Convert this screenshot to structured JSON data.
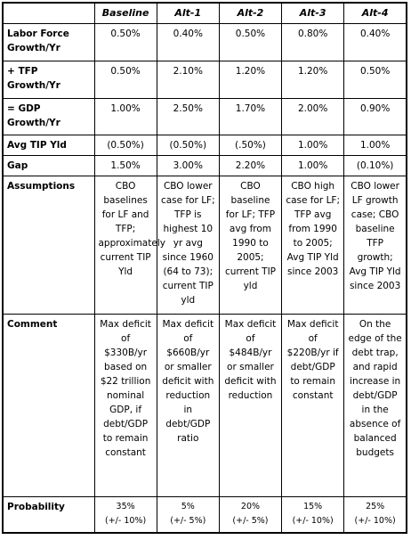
{
  "table": {
    "columns": [
      "Baseline",
      "Alt-1",
      "Alt-2",
      "Alt-3",
      "Alt-4"
    ],
    "rows": [
      {
        "label": "Labor Force Growth/Yr",
        "cells": [
          "0.50%",
          "0.40%",
          "0.50%",
          "0.80%",
          "0.40%"
        ]
      },
      {
        "label": "+ TFP Growth/Yr",
        "cells": [
          "0.50%",
          "2.10%",
          "1.20%",
          "1.20%",
          "0.50%"
        ]
      },
      {
        "label": "= GDP Growth/Yr",
        "cells": [
          "1.00%",
          "2.50%",
          "1.70%",
          "2.00%",
          "0.90%"
        ]
      },
      {
        "label": "Avg TIP Yld",
        "cells": [
          "(0.50%)",
          "(0.50%)",
          "(.50%)",
          "1.00%",
          "1.00%"
        ]
      },
      {
        "label": "Gap",
        "cells": [
          "1.50%",
          "3.00%",
          "2.20%",
          "1.00%",
          "(0.10%)"
        ]
      },
      {
        "label": "Assumptions",
        "cells": [
          "CBO baselines for LF and TFP; approximately current TIP Yld",
          "CBO lower case for LF; TFP is highest 10 yr avg since 1960 (64 to 73); current TIP yld",
          "CBO baseline for LF; TFP avg from 1990 to 2005; current TIP yld",
          "CBO high case for LF; TFP avg from 1990 to 2005; Avg TIP Yld since 2003",
          "CBO lower LF growth case; CBO baseline TFP growth; Avg TIP Yld since 2003"
        ]
      },
      {
        "label": "Comment",
        "cells": [
          "Max deficit of $330B/yr based on $22 trillion nominal GDP, if debt/GDP to remain constant",
          "Max deficit of $660B/yr or smaller deficit with reduction in debt/GDP ratio",
          "Max deficit of $484B/yr or smaller deficit with reduction",
          "Max deficit of $220B/yr if debt/GDP to remain constant",
          "On the edge of the debt trap, and rapid increase in debt/GDP in the absence of balanced budgets"
        ]
      },
      {
        "label": "Probability",
        "cells": [
          {
            "value": "35%",
            "range": "(+/- 10%)"
          },
          {
            "value": "5%",
            "range": "(+/- 5%)"
          },
          {
            "value": "20%",
            "range": "(+/- 5%)"
          },
          {
            "value": "15%",
            "range": "(+/- 10%)"
          },
          {
            "value": "25%",
            "range": "(+/- 10%)"
          }
        ]
      }
    ]
  }
}
